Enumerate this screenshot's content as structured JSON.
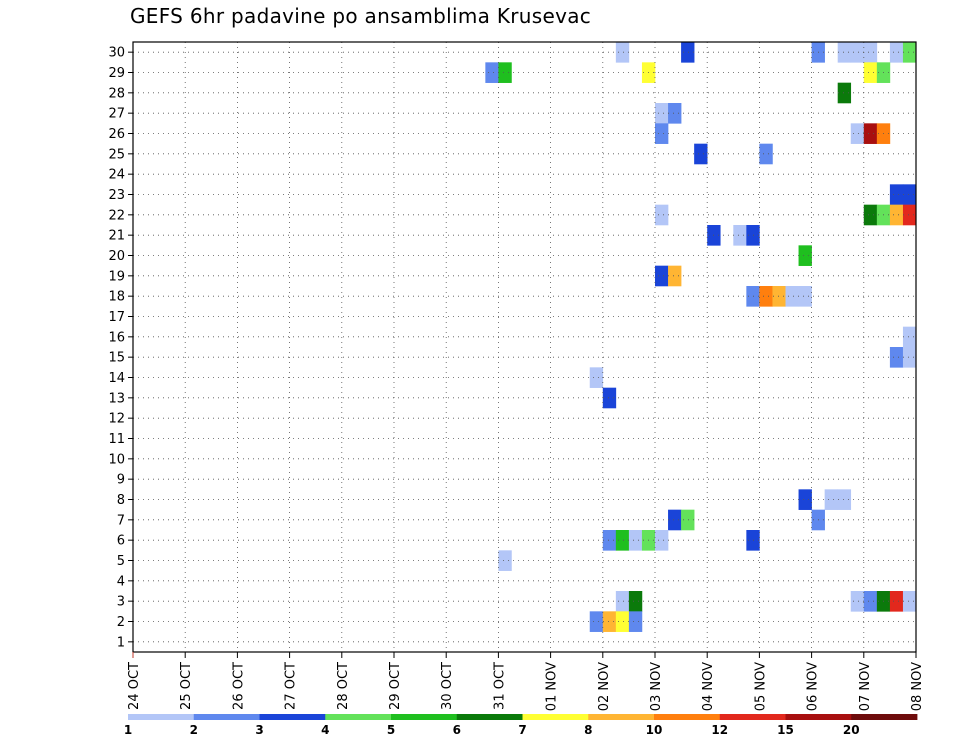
{
  "chart_data": {
    "type": "heatmap",
    "title": "GEFS 6hr padavine po ansamblima Krusevac",
    "xlabel": "",
    "ylabel": "",
    "x_ticks": [
      "24 OCT",
      "25 OCT",
      "26 OCT",
      "27 OCT",
      "28 OCT",
      "29 OCT",
      "30 OCT",
      "31 OCT",
      "01 NOV",
      "02 NOV",
      "03 NOV",
      "04 NOV",
      "05 NOV",
      "06 NOV",
      "07 NOV",
      "08 NOV"
    ],
    "xlim": [
      "24 OCT 00Z",
      "08 NOV 00Z"
    ],
    "y_ticks": [
      1,
      2,
      3,
      4,
      5,
      6,
      7,
      8,
      9,
      10,
      11,
      12,
      13,
      14,
      15,
      16,
      17,
      18,
      19,
      20,
      21,
      22,
      23,
      24,
      25,
      26,
      27,
      28,
      29,
      30
    ],
    "ylim": [
      0.5,
      30.5
    ],
    "grid": true,
    "legend": {
      "placement": "bottom",
      "labels": [
        "1",
        "2",
        "3",
        "4",
        "5",
        "6",
        "7",
        "8",
        "10",
        "12",
        "15",
        "20"
      ],
      "colors": [
        "#b3c6f7",
        "#5f88ee",
        "#1a44d8",
        "#63e25a",
        "#1fbf1f",
        "#0b7a0b",
        "#ffff33",
        "#ffb533",
        "#ff7f0e",
        "#e2281d",
        "#a80f0f",
        "#6e0c0c"
      ]
    },
    "cells": [
      {
        "member": 30,
        "time": "02 NOV 06Z",
        "color": "#b3c6f7"
      },
      {
        "member": 30,
        "time": "03 NOV 12Z",
        "color": "#1a44d8"
      },
      {
        "member": 30,
        "time": "06 NOV 00Z",
        "color": "#5f88ee"
      },
      {
        "member": 30,
        "time": "06 NOV 12Z",
        "color": "#b3c6f7"
      },
      {
        "member": 30,
        "time": "06 NOV 18Z",
        "color": "#b3c6f7"
      },
      {
        "member": 30,
        "time": "07 NOV 00Z",
        "color": "#b3c6f7"
      },
      {
        "member": 30,
        "time": "07 NOV 12Z",
        "color": "#b3c6f7"
      },
      {
        "member": 30,
        "time": "07 NOV 18Z",
        "color": "#63e25a"
      },
      {
        "member": 29,
        "time": "30 OCT 18Z",
        "color": "#5f88ee"
      },
      {
        "member": 29,
        "time": "31 OCT 00Z",
        "color": "#1fbf1f"
      },
      {
        "member": 29,
        "time": "02 NOV 18Z",
        "color": "#ffff33"
      },
      {
        "member": 29,
        "time": "07 NOV 00Z",
        "color": "#ffff33"
      },
      {
        "member": 29,
        "time": "07 NOV 06Z",
        "color": "#63e25a"
      },
      {
        "member": 28,
        "time": "06 NOV 12Z",
        "color": "#0b7a0b"
      },
      {
        "member": 27,
        "time": "03 NOV 00Z",
        "color": "#b3c6f7"
      },
      {
        "member": 27,
        "time": "03 NOV 06Z",
        "color": "#5f88ee"
      },
      {
        "member": 26,
        "time": "03 NOV 00Z",
        "color": "#5f88ee"
      },
      {
        "member": 26,
        "time": "06 NOV 18Z",
        "color": "#b3c6f7"
      },
      {
        "member": 26,
        "time": "07 NOV 00Z",
        "color": "#a80f0f"
      },
      {
        "member": 26,
        "time": "07 NOV 06Z",
        "color": "#ff7f0e"
      },
      {
        "member": 25,
        "time": "03 NOV 18Z",
        "color": "#1a44d8"
      },
      {
        "member": 25,
        "time": "05 NOV 00Z",
        "color": "#5f88ee"
      },
      {
        "member": 23,
        "time": "07 NOV 12Z",
        "color": "#1a44d8"
      },
      {
        "member": 23,
        "time": "07 NOV 18Z",
        "color": "#1a44d8"
      },
      {
        "member": 22,
        "time": "03 NOV 00Z",
        "color": "#b3c6f7"
      },
      {
        "member": 22,
        "time": "07 NOV 00Z",
        "color": "#0b7a0b"
      },
      {
        "member": 22,
        "time": "07 NOV 06Z",
        "color": "#63e25a"
      },
      {
        "member": 22,
        "time": "07 NOV 12Z",
        "color": "#ffb533"
      },
      {
        "member": 22,
        "time": "07 NOV 18Z",
        "color": "#e2281d"
      },
      {
        "member": 21,
        "time": "04 NOV 00Z",
        "color": "#1a44d8"
      },
      {
        "member": 21,
        "time": "04 NOV 12Z",
        "color": "#b3c6f7"
      },
      {
        "member": 21,
        "time": "04 NOV 18Z",
        "color": "#1a44d8"
      },
      {
        "member": 20,
        "time": "05 NOV 18Z",
        "color": "#1fbf1f"
      },
      {
        "member": 19,
        "time": "03 NOV 00Z",
        "color": "#1a44d8"
      },
      {
        "member": 19,
        "time": "03 NOV 06Z",
        "color": "#ffb533"
      },
      {
        "member": 18,
        "time": "04 NOV 18Z",
        "color": "#5f88ee"
      },
      {
        "member": 18,
        "time": "05 NOV 00Z",
        "color": "#ff7f0e"
      },
      {
        "member": 18,
        "time": "05 NOV 06Z",
        "color": "#ffb533"
      },
      {
        "member": 18,
        "time": "05 NOV 12Z",
        "color": "#b3c6f7"
      },
      {
        "member": 18,
        "time": "05 NOV 18Z",
        "color": "#b3c6f7"
      },
      {
        "member": 16,
        "time": "07 NOV 18Z",
        "color": "#b3c6f7"
      },
      {
        "member": 15,
        "time": "07 NOV 12Z",
        "color": "#5f88ee"
      },
      {
        "member": 15,
        "time": "07 NOV 18Z",
        "color": "#b3c6f7"
      },
      {
        "member": 14,
        "time": "01 NOV 18Z",
        "color": "#b3c6f7"
      },
      {
        "member": 13,
        "time": "02 NOV 00Z",
        "color": "#1a44d8"
      },
      {
        "member": 8,
        "time": "05 NOV 18Z",
        "color": "#1a44d8"
      },
      {
        "member": 8,
        "time": "06 NOV 06Z",
        "color": "#b3c6f7"
      },
      {
        "member": 8,
        "time": "06 NOV 12Z",
        "color": "#b3c6f7"
      },
      {
        "member": 7,
        "time": "03 NOV 06Z",
        "color": "#1a44d8"
      },
      {
        "member": 7,
        "time": "03 NOV 12Z",
        "color": "#63e25a"
      },
      {
        "member": 7,
        "time": "06 NOV 00Z",
        "color": "#5f88ee"
      },
      {
        "member": 6,
        "time": "02 NOV 00Z",
        "color": "#5f88ee"
      },
      {
        "member": 6,
        "time": "02 NOV 06Z",
        "color": "#1fbf1f"
      },
      {
        "member": 6,
        "time": "02 NOV 12Z",
        "color": "#b3c6f7"
      },
      {
        "member": 6,
        "time": "02 NOV 18Z",
        "color": "#63e25a"
      },
      {
        "member": 6,
        "time": "03 NOV 00Z",
        "color": "#b3c6f7"
      },
      {
        "member": 6,
        "time": "04 NOV 18Z",
        "color": "#1a44d8"
      },
      {
        "member": 5,
        "time": "31 OCT 00Z",
        "color": "#b3c6f7"
      },
      {
        "member": 3,
        "time": "02 NOV 06Z",
        "color": "#b3c6f7"
      },
      {
        "member": 3,
        "time": "02 NOV 12Z",
        "color": "#0b7a0b"
      },
      {
        "member": 3,
        "time": "06 NOV 18Z",
        "color": "#b3c6f7"
      },
      {
        "member": 3,
        "time": "07 NOV 00Z",
        "color": "#5f88ee"
      },
      {
        "member": 3,
        "time": "07 NOV 06Z",
        "color": "#0b7a0b"
      },
      {
        "member": 3,
        "time": "07 NOV 12Z",
        "color": "#e2281d"
      },
      {
        "member": 3,
        "time": "07 NOV 18Z",
        "color": "#b3c6f7"
      },
      {
        "member": 2,
        "time": "01 NOV 18Z",
        "color": "#5f88ee"
      },
      {
        "member": 2,
        "time": "02 NOV 00Z",
        "color": "#ffb533"
      },
      {
        "member": 2,
        "time": "02 NOV 06Z",
        "color": "#ffff33"
      },
      {
        "member": 2,
        "time": "02 NOV 12Z",
        "color": "#5f88ee"
      }
    ]
  }
}
